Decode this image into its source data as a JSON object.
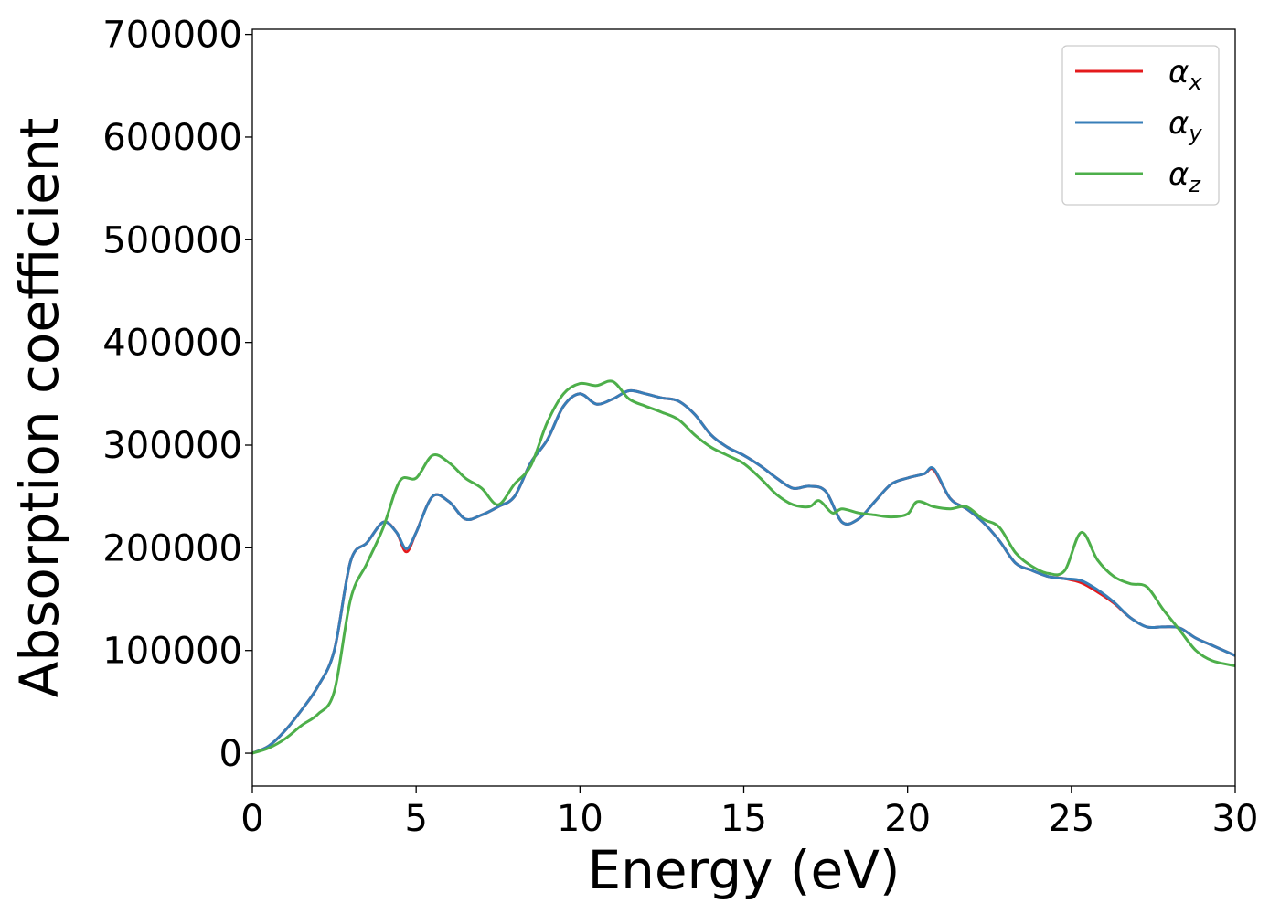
{
  "chart_data": {
    "type": "line",
    "title": "",
    "xlabel": "Energy (eV)",
    "ylabel": "Absorption coefficient",
    "xlim": [
      0,
      30
    ],
    "ylim": [
      -32000,
      705000
    ],
    "xticks": [
      0,
      5,
      10,
      15,
      20,
      25,
      30
    ],
    "yticks": [
      0,
      100000,
      200000,
      300000,
      400000,
      500000,
      600000,
      700000
    ],
    "grid": false,
    "legend": "top-right",
    "series": [
      {
        "name": "α_x",
        "label_main": "α",
        "label_sub": "x",
        "color": "#e41a1c",
        "x": [
          0,
          0.5,
          1.0,
          1.5,
          2.0,
          2.5,
          3.0,
          3.5,
          4.0,
          4.4,
          4.7,
          5.0,
          5.5,
          6.0,
          6.5,
          7.0,
          7.5,
          8.0,
          8.5,
          9.0,
          9.5,
          10.0,
          10.5,
          11.0,
          11.5,
          12.0,
          12.5,
          13.0,
          13.5,
          14.0,
          14.5,
          15.0,
          15.5,
          16.0,
          16.5,
          17.0,
          17.5,
          18.0,
          18.5,
          19.0,
          19.5,
          20.0,
          20.5,
          20.8,
          21.3,
          21.8,
          22.3,
          22.8,
          23.3,
          23.8,
          24.3,
          24.8,
          25.3,
          25.8,
          26.3,
          26.8,
          27.3,
          27.8,
          28.3,
          28.8,
          29.3,
          30.0
        ],
        "values": [
          0,
          7000,
          22000,
          42000,
          65000,
          100000,
          187000,
          205000,
          225000,
          215000,
          196000,
          215000,
          250000,
          245000,
          228000,
          232000,
          240000,
          250000,
          283000,
          305000,
          338000,
          350000,
          340000,
          345000,
          353000,
          350000,
          346000,
          343000,
          330000,
          310000,
          298000,
          290000,
          280000,
          268000,
          258000,
          260000,
          255000,
          225000,
          228000,
          245000,
          262000,
          268000,
          272000,
          276000,
          248000,
          238000,
          225000,
          207000,
          185000,
          178000,
          172000,
          170000,
          166000,
          157000,
          146000,
          132000,
          123000,
          123000,
          122000,
          112000,
          105000,
          95000
        ]
      },
      {
        "name": "α_y",
        "label_main": "α",
        "label_sub": "y",
        "color": "#377eb8",
        "x": [
          0,
          0.5,
          1.0,
          1.5,
          2.0,
          2.5,
          3.0,
          3.5,
          4.0,
          4.4,
          4.7,
          5.0,
          5.5,
          6.0,
          6.5,
          7.0,
          7.5,
          8.0,
          8.5,
          9.0,
          9.5,
          10.0,
          10.5,
          11.0,
          11.5,
          12.0,
          12.5,
          13.0,
          13.5,
          14.0,
          14.5,
          15.0,
          15.5,
          16.0,
          16.5,
          17.0,
          17.5,
          18.0,
          18.5,
          19.0,
          19.5,
          20.0,
          20.5,
          20.8,
          21.3,
          21.8,
          22.3,
          22.8,
          23.3,
          23.8,
          24.3,
          24.8,
          25.3,
          25.8,
          26.3,
          26.8,
          27.3,
          27.8,
          28.3,
          28.8,
          29.3,
          30.0
        ],
        "values": [
          0,
          7000,
          22000,
          42000,
          65000,
          100000,
          187000,
          205000,
          225000,
          215000,
          199000,
          215000,
          250000,
          245000,
          228000,
          232000,
          240000,
          250000,
          283000,
          305000,
          338000,
          350000,
          340000,
          345000,
          353000,
          350000,
          346000,
          343000,
          330000,
          310000,
          298000,
          290000,
          280000,
          268000,
          258000,
          260000,
          255000,
          225000,
          228000,
          245000,
          262000,
          268000,
          272000,
          277000,
          248000,
          238000,
          225000,
          207000,
          185000,
          178000,
          172000,
          170000,
          168000,
          159000,
          147000,
          132000,
          123000,
          123000,
          122000,
          112000,
          105000,
          95000
        ]
      },
      {
        "name": "α_z",
        "label_main": "α",
        "label_sub": "z",
        "color": "#4daf4a",
        "x": [
          0,
          0.5,
          1.0,
          1.5,
          2.0,
          2.5,
          3.0,
          3.5,
          4.0,
          4.5,
          5.0,
          5.5,
          6.0,
          6.5,
          7.0,
          7.5,
          8.0,
          8.5,
          9.0,
          9.5,
          10.0,
          10.5,
          11.0,
          11.5,
          12.0,
          12.5,
          13.0,
          13.5,
          14.0,
          14.5,
          15.0,
          15.5,
          16.0,
          16.5,
          17.0,
          17.3,
          17.7,
          18.0,
          18.5,
          19.0,
          19.5,
          20.0,
          20.3,
          20.8,
          21.3,
          21.8,
          22.3,
          22.8,
          23.3,
          23.8,
          24.3,
          24.8,
          25.3,
          25.8,
          26.3,
          26.8,
          27.3,
          27.8,
          28.3,
          28.8,
          29.3,
          30.0
        ],
        "values": [
          0,
          5000,
          14000,
          27000,
          38000,
          60000,
          150000,
          185000,
          220000,
          265000,
          268000,
          290000,
          283000,
          268000,
          258000,
          242000,
          262000,
          280000,
          322000,
          350000,
          360000,
          358000,
          362000,
          345000,
          338000,
          332000,
          325000,
          310000,
          298000,
          290000,
          282000,
          268000,
          252000,
          242000,
          240000,
          246000,
          234000,
          238000,
          234000,
          232000,
          230000,
          233000,
          245000,
          240000,
          238000,
          240000,
          228000,
          220000,
          195000,
          182000,
          175000,
          178000,
          215000,
          188000,
          172000,
          165000,
          162000,
          140000,
          120000,
          100000,
          90000,
          85000
        ]
      }
    ]
  }
}
